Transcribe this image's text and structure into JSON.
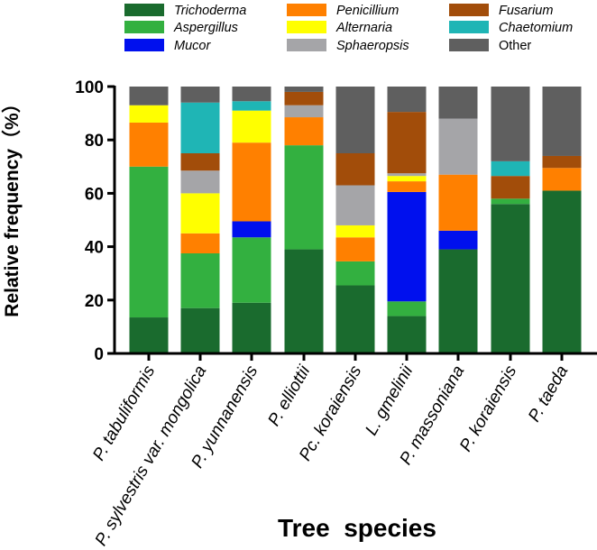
{
  "chart_data": {
    "type": "stacked-bar",
    "title": "",
    "xlabel": "Tree  species",
    "ylabel": "Relative frequency（%）",
    "ylim": [
      0,
      100
    ],
    "yticks": [
      0,
      20,
      40,
      60,
      80,
      100
    ],
    "legend_position": "top",
    "categories": [
      "P. tabuliformis",
      "P. sylvestris var. mongolica",
      "P. yunnanensis",
      "P. elliottii",
      "Pc. koraiensis",
      "L. gmelinii",
      "P. massoniana",
      "P. koraiensis",
      "P. taeda"
    ],
    "series": [
      {
        "name": "Trichoderma",
        "color": "#1a6b2e",
        "italic": true,
        "values": [
          13.5,
          17,
          19,
          39,
          25.5,
          14,
          39,
          56,
          61
        ]
      },
      {
        "name": "Aspergillus",
        "color": "#33b040",
        "italic": true,
        "values": [
          56.5,
          20.5,
          24.5,
          39,
          9,
          5.5,
          0,
          2,
          0
        ]
      },
      {
        "name": "Mucor",
        "color": "#0010ee",
        "italic": true,
        "values": [
          0,
          0,
          6,
          0,
          0,
          41,
          7,
          0,
          0
        ]
      },
      {
        "name": "Penicillium",
        "color": "#ff8000",
        "italic": true,
        "values": [
          16.5,
          7.5,
          29.5,
          10.5,
          9,
          4,
          21,
          0,
          8.5
        ]
      },
      {
        "name": "Alternaria",
        "color": "#ffff00",
        "italic": true,
        "values": [
          6.5,
          15,
          12,
          0,
          4.5,
          2,
          0,
          0,
          0
        ]
      },
      {
        "name": "Sphaeropsis",
        "color": "#a5a5a8",
        "italic": true,
        "values": [
          0,
          8.5,
          0,
          4.5,
          15,
          1,
          21,
          0,
          0
        ]
      },
      {
        "name": "Fusarium",
        "color": "#a24d0a",
        "italic": true,
        "values": [
          0,
          6.5,
          0,
          5,
          12,
          23,
          0,
          8.5,
          4.5
        ]
      },
      {
        "name": "Chaetomium",
        "color": "#1fb5b5",
        "italic": true,
        "values": [
          0,
          19,
          3.5,
          0,
          0,
          0,
          0,
          5.5,
          0
        ]
      },
      {
        "name": "Other",
        "color": "#5f5f5f",
        "italic": false,
        "values": [
          7,
          6,
          5.5,
          2,
          25,
          9.5,
          12,
          28,
          26
        ]
      }
    ]
  }
}
